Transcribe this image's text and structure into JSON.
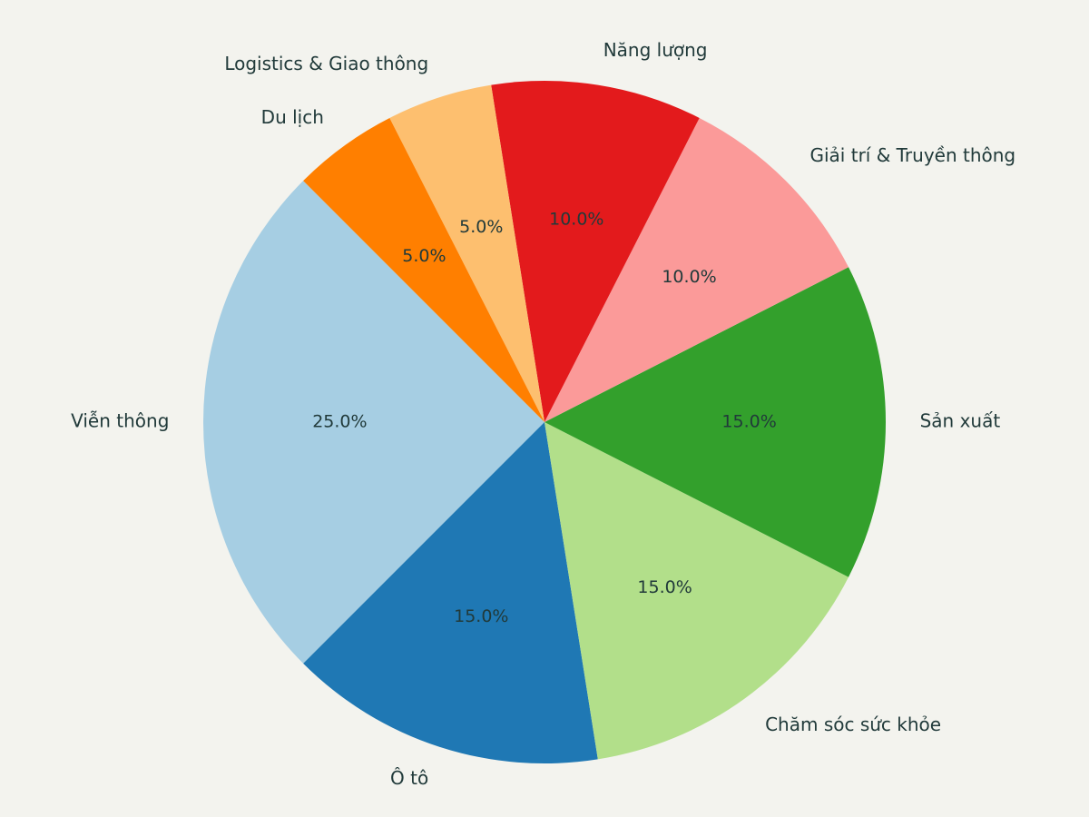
{
  "chart_data": {
    "type": "pie",
    "title": "",
    "categories": [
      "Viễn thông",
      "Ô tô",
      "Chăm sóc sức khỏe",
      "Sản xuất",
      "Giải trí & Truyền thông",
      "Năng lượng",
      "Logistics & Giao thông",
      "Du lịch"
    ],
    "values": [
      25.0,
      15.0,
      15.0,
      15.0,
      10.0,
      10.0,
      5.0,
      5.0
    ],
    "percent_labels": [
      "25.0%",
      "15.0%",
      "15.0%",
      "15.0%",
      "10.0%",
      "10.0%",
      "5.0%",
      "5.0%"
    ],
    "colors": [
      "#a6cee3",
      "#1f78b4",
      "#b2df8a",
      "#33a02c",
      "#fb9a99",
      "#e31a1c",
      "#fdbf6f",
      "#ff7f00"
    ],
    "start_angle_deg": 135,
    "direction": "counterclockwise",
    "legend": "none"
  },
  "background_color": "#f3f3ee",
  "text_color": "#213a3a"
}
